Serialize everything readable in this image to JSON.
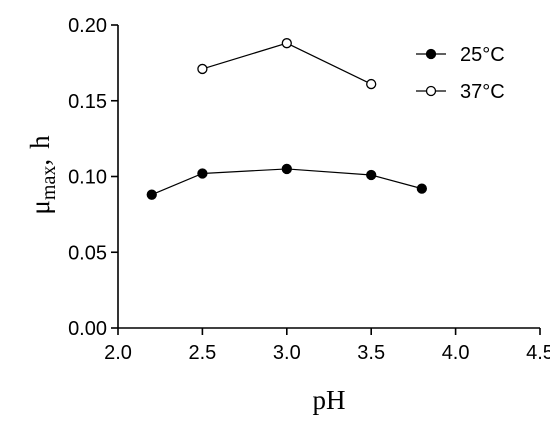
{
  "chart_data": {
    "type": "line",
    "xlabel": "pH",
    "ylabel": {
      "main": "μ",
      "sub": "max",
      "sep": ",",
      "unit": "h"
    },
    "xlim": [
      2.0,
      4.5
    ],
    "ylim": [
      0.0,
      0.2
    ],
    "xticks": [
      "2.0",
      "2.5",
      "3.0",
      "3.5",
      "4.0",
      "4.5"
    ],
    "yticks": [
      "0.00",
      "0.05",
      "0.10",
      "0.15",
      "0.20"
    ],
    "grid": false,
    "legend_position": "top-right",
    "series": [
      {
        "name": "25°C",
        "marker": "filled-circle",
        "color": "#000000",
        "x": [
          2.2,
          2.5,
          3.0,
          3.5,
          3.8
        ],
        "y": [
          0.088,
          0.102,
          0.105,
          0.101,
          0.092
        ]
      },
      {
        "name": "37°C",
        "marker": "open-circle",
        "color": "#000000",
        "x": [
          2.5,
          3.0,
          3.5
        ],
        "y": [
          0.171,
          0.188,
          0.161
        ]
      }
    ]
  }
}
